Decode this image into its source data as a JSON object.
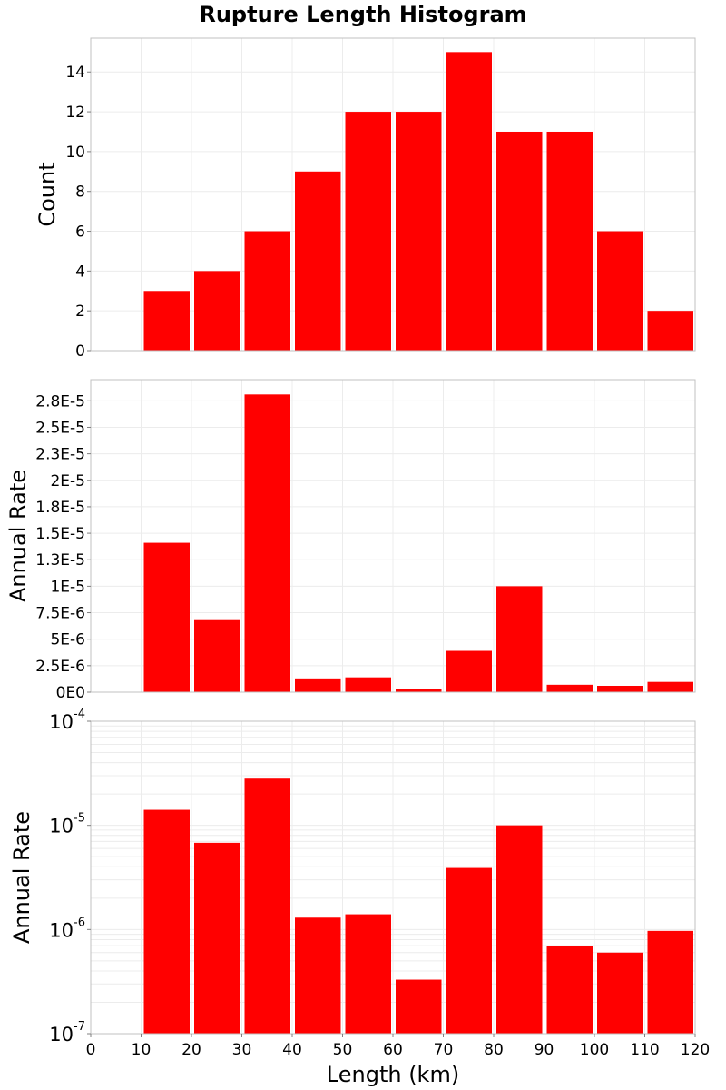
{
  "chart_data": {
    "title": "Rupture Length Histogram",
    "type": "bar",
    "shared_x": {
      "label": "Length (km)",
      "range": [
        0,
        120
      ],
      "ticks": [
        "0",
        "10",
        "20",
        "30",
        "40",
        "50",
        "60",
        "70",
        "80",
        "90",
        "100",
        "110",
        "120"
      ],
      "bin_width": 10,
      "bin_centers": [
        15,
        25,
        35,
        45,
        55,
        65,
        75,
        85,
        95,
        105,
        115
      ]
    },
    "colors": {
      "bar": "#ff0000",
      "grid": "#ececec",
      "frame": "#c0c0c0"
    },
    "grid": true,
    "panels": [
      {
        "name": "count",
        "ylabel": "Count",
        "scale": "linear",
        "ylim": [
          0,
          15.7
        ],
        "yticks": [
          {
            "v": 0,
            "label": "0"
          },
          {
            "v": 2,
            "label": "2"
          },
          {
            "v": 4,
            "label": "4"
          },
          {
            "v": 6,
            "label": "6"
          },
          {
            "v": 8,
            "label": "8"
          },
          {
            "v": 10,
            "label": "10"
          },
          {
            "v": 12,
            "label": "12"
          },
          {
            "v": 14,
            "label": "14"
          }
        ],
        "values": [
          3,
          4,
          6,
          9,
          12,
          12,
          15,
          11,
          11,
          6,
          2
        ]
      },
      {
        "name": "annual-rate-linear",
        "ylabel": "Annual Rate",
        "scale": "linear",
        "ylim": [
          0,
          2.95e-05
        ],
        "yticks": [
          {
            "v": 0,
            "label": "0E0"
          },
          {
            "v": 2.5e-06,
            "label": "2.5E-6"
          },
          {
            "v": 5e-06,
            "label": "5E-6"
          },
          {
            "v": 7.5e-06,
            "label": "7.5E-6"
          },
          {
            "v": 1e-05,
            "label": "1E-5"
          },
          {
            "v": 1.25e-05,
            "label": "1.3E-5"
          },
          {
            "v": 1.5e-05,
            "label": "1.5E-5"
          },
          {
            "v": 1.75e-05,
            "label": "1.8E-5"
          },
          {
            "v": 2e-05,
            "label": "2E-5"
          },
          {
            "v": 2.25e-05,
            "label": "2.3E-5"
          },
          {
            "v": 2.5e-05,
            "label": "2.5E-5"
          },
          {
            "v": 2.75e-05,
            "label": "2.8E-5"
          }
        ],
        "values": [
          1.41e-05,
          6.8e-06,
          2.81e-05,
          1.3e-06,
          1.4e-06,
          3.3e-07,
          3.9e-06,
          1e-05,
          7e-07,
          6e-07,
          9.7e-07
        ]
      },
      {
        "name": "annual-rate-log",
        "ylabel": "Annual Rate",
        "scale": "log",
        "ylim": [
          1e-07,
          0.0001
        ],
        "yticks": [
          {
            "v": 1e-07,
            "base": "10",
            "exp": "-7"
          },
          {
            "v": 1e-06,
            "base": "10",
            "exp": "-6"
          },
          {
            "v": 1e-05,
            "base": "10",
            "exp": "-5"
          },
          {
            "v": 0.0001,
            "base": "10",
            "exp": "-4"
          }
        ],
        "values": [
          1.41e-05,
          6.8e-06,
          2.81e-05,
          1.3e-06,
          1.4e-06,
          3.3e-07,
          3.9e-06,
          1e-05,
          7e-07,
          6e-07,
          9.7e-07
        ]
      }
    ]
  }
}
